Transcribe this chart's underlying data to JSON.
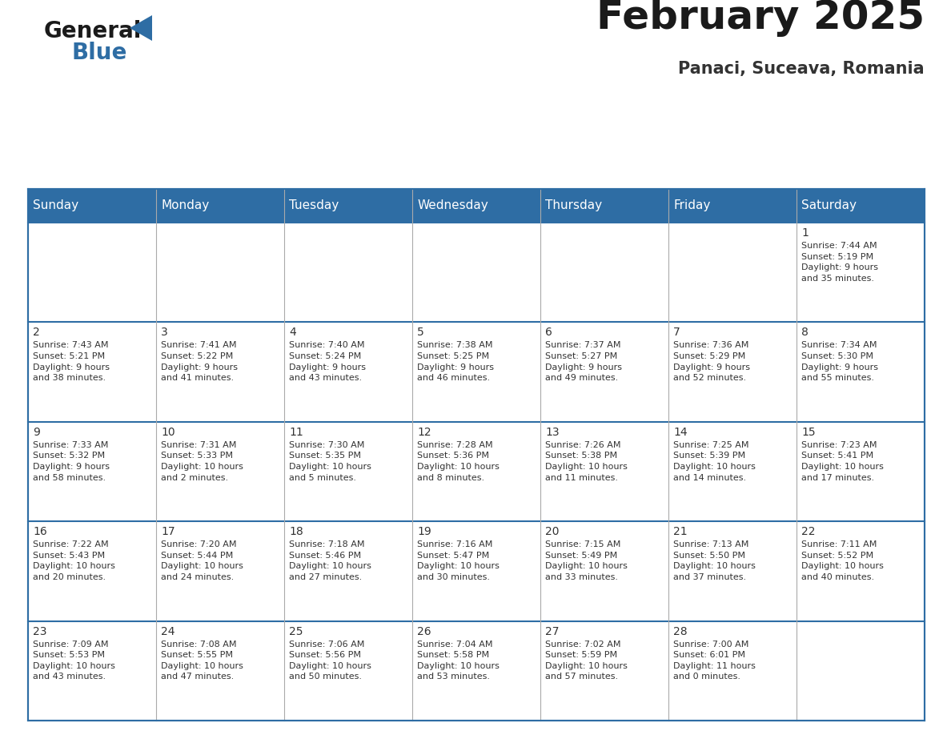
{
  "title": "February 2025",
  "subtitle": "Panaci, Suceava, Romania",
  "header_bg_color": "#2e6da4",
  "header_text_color": "#ffffff",
  "cell_bg_color": "#ffffff",
  "border_color": "#2e6da4",
  "grid_line_color": "#aaaaaa",
  "text_color": "#333333",
  "days_of_week": [
    "Sunday",
    "Monday",
    "Tuesday",
    "Wednesday",
    "Thursday",
    "Friday",
    "Saturday"
  ],
  "calendar_data": [
    [
      {
        "day": "",
        "info": ""
      },
      {
        "day": "",
        "info": ""
      },
      {
        "day": "",
        "info": ""
      },
      {
        "day": "",
        "info": ""
      },
      {
        "day": "",
        "info": ""
      },
      {
        "day": "",
        "info": ""
      },
      {
        "day": "1",
        "info": "Sunrise: 7:44 AM\nSunset: 5:19 PM\nDaylight: 9 hours\nand 35 minutes."
      }
    ],
    [
      {
        "day": "2",
        "info": "Sunrise: 7:43 AM\nSunset: 5:21 PM\nDaylight: 9 hours\nand 38 minutes."
      },
      {
        "day": "3",
        "info": "Sunrise: 7:41 AM\nSunset: 5:22 PM\nDaylight: 9 hours\nand 41 minutes."
      },
      {
        "day": "4",
        "info": "Sunrise: 7:40 AM\nSunset: 5:24 PM\nDaylight: 9 hours\nand 43 minutes."
      },
      {
        "day": "5",
        "info": "Sunrise: 7:38 AM\nSunset: 5:25 PM\nDaylight: 9 hours\nand 46 minutes."
      },
      {
        "day": "6",
        "info": "Sunrise: 7:37 AM\nSunset: 5:27 PM\nDaylight: 9 hours\nand 49 minutes."
      },
      {
        "day": "7",
        "info": "Sunrise: 7:36 AM\nSunset: 5:29 PM\nDaylight: 9 hours\nand 52 minutes."
      },
      {
        "day": "8",
        "info": "Sunrise: 7:34 AM\nSunset: 5:30 PM\nDaylight: 9 hours\nand 55 minutes."
      }
    ],
    [
      {
        "day": "9",
        "info": "Sunrise: 7:33 AM\nSunset: 5:32 PM\nDaylight: 9 hours\nand 58 minutes."
      },
      {
        "day": "10",
        "info": "Sunrise: 7:31 AM\nSunset: 5:33 PM\nDaylight: 10 hours\nand 2 minutes."
      },
      {
        "day": "11",
        "info": "Sunrise: 7:30 AM\nSunset: 5:35 PM\nDaylight: 10 hours\nand 5 minutes."
      },
      {
        "day": "12",
        "info": "Sunrise: 7:28 AM\nSunset: 5:36 PM\nDaylight: 10 hours\nand 8 minutes."
      },
      {
        "day": "13",
        "info": "Sunrise: 7:26 AM\nSunset: 5:38 PM\nDaylight: 10 hours\nand 11 minutes."
      },
      {
        "day": "14",
        "info": "Sunrise: 7:25 AM\nSunset: 5:39 PM\nDaylight: 10 hours\nand 14 minutes."
      },
      {
        "day": "15",
        "info": "Sunrise: 7:23 AM\nSunset: 5:41 PM\nDaylight: 10 hours\nand 17 minutes."
      }
    ],
    [
      {
        "day": "16",
        "info": "Sunrise: 7:22 AM\nSunset: 5:43 PM\nDaylight: 10 hours\nand 20 minutes."
      },
      {
        "day": "17",
        "info": "Sunrise: 7:20 AM\nSunset: 5:44 PM\nDaylight: 10 hours\nand 24 minutes."
      },
      {
        "day": "18",
        "info": "Sunrise: 7:18 AM\nSunset: 5:46 PM\nDaylight: 10 hours\nand 27 minutes."
      },
      {
        "day": "19",
        "info": "Sunrise: 7:16 AM\nSunset: 5:47 PM\nDaylight: 10 hours\nand 30 minutes."
      },
      {
        "day": "20",
        "info": "Sunrise: 7:15 AM\nSunset: 5:49 PM\nDaylight: 10 hours\nand 33 minutes."
      },
      {
        "day": "21",
        "info": "Sunrise: 7:13 AM\nSunset: 5:50 PM\nDaylight: 10 hours\nand 37 minutes."
      },
      {
        "day": "22",
        "info": "Sunrise: 7:11 AM\nSunset: 5:52 PM\nDaylight: 10 hours\nand 40 minutes."
      }
    ],
    [
      {
        "day": "23",
        "info": "Sunrise: 7:09 AM\nSunset: 5:53 PM\nDaylight: 10 hours\nand 43 minutes."
      },
      {
        "day": "24",
        "info": "Sunrise: 7:08 AM\nSunset: 5:55 PM\nDaylight: 10 hours\nand 47 minutes."
      },
      {
        "day": "25",
        "info": "Sunrise: 7:06 AM\nSunset: 5:56 PM\nDaylight: 10 hours\nand 50 minutes."
      },
      {
        "day": "26",
        "info": "Sunrise: 7:04 AM\nSunset: 5:58 PM\nDaylight: 10 hours\nand 53 minutes."
      },
      {
        "day": "27",
        "info": "Sunrise: 7:02 AM\nSunset: 5:59 PM\nDaylight: 10 hours\nand 57 minutes."
      },
      {
        "day": "28",
        "info": "Sunrise: 7:00 AM\nSunset: 6:01 PM\nDaylight: 11 hours\nand 0 minutes."
      },
      {
        "day": "",
        "info": ""
      }
    ]
  ],
  "logo_general_color": "#1a1a1a",
  "logo_blue_color": "#2e6da4",
  "logo_triangle_color": "#2e6da4",
  "title_fontsize": 36,
  "subtitle_fontsize": 15,
  "header_fontsize": 11,
  "day_num_fontsize": 10,
  "info_fontsize": 8
}
